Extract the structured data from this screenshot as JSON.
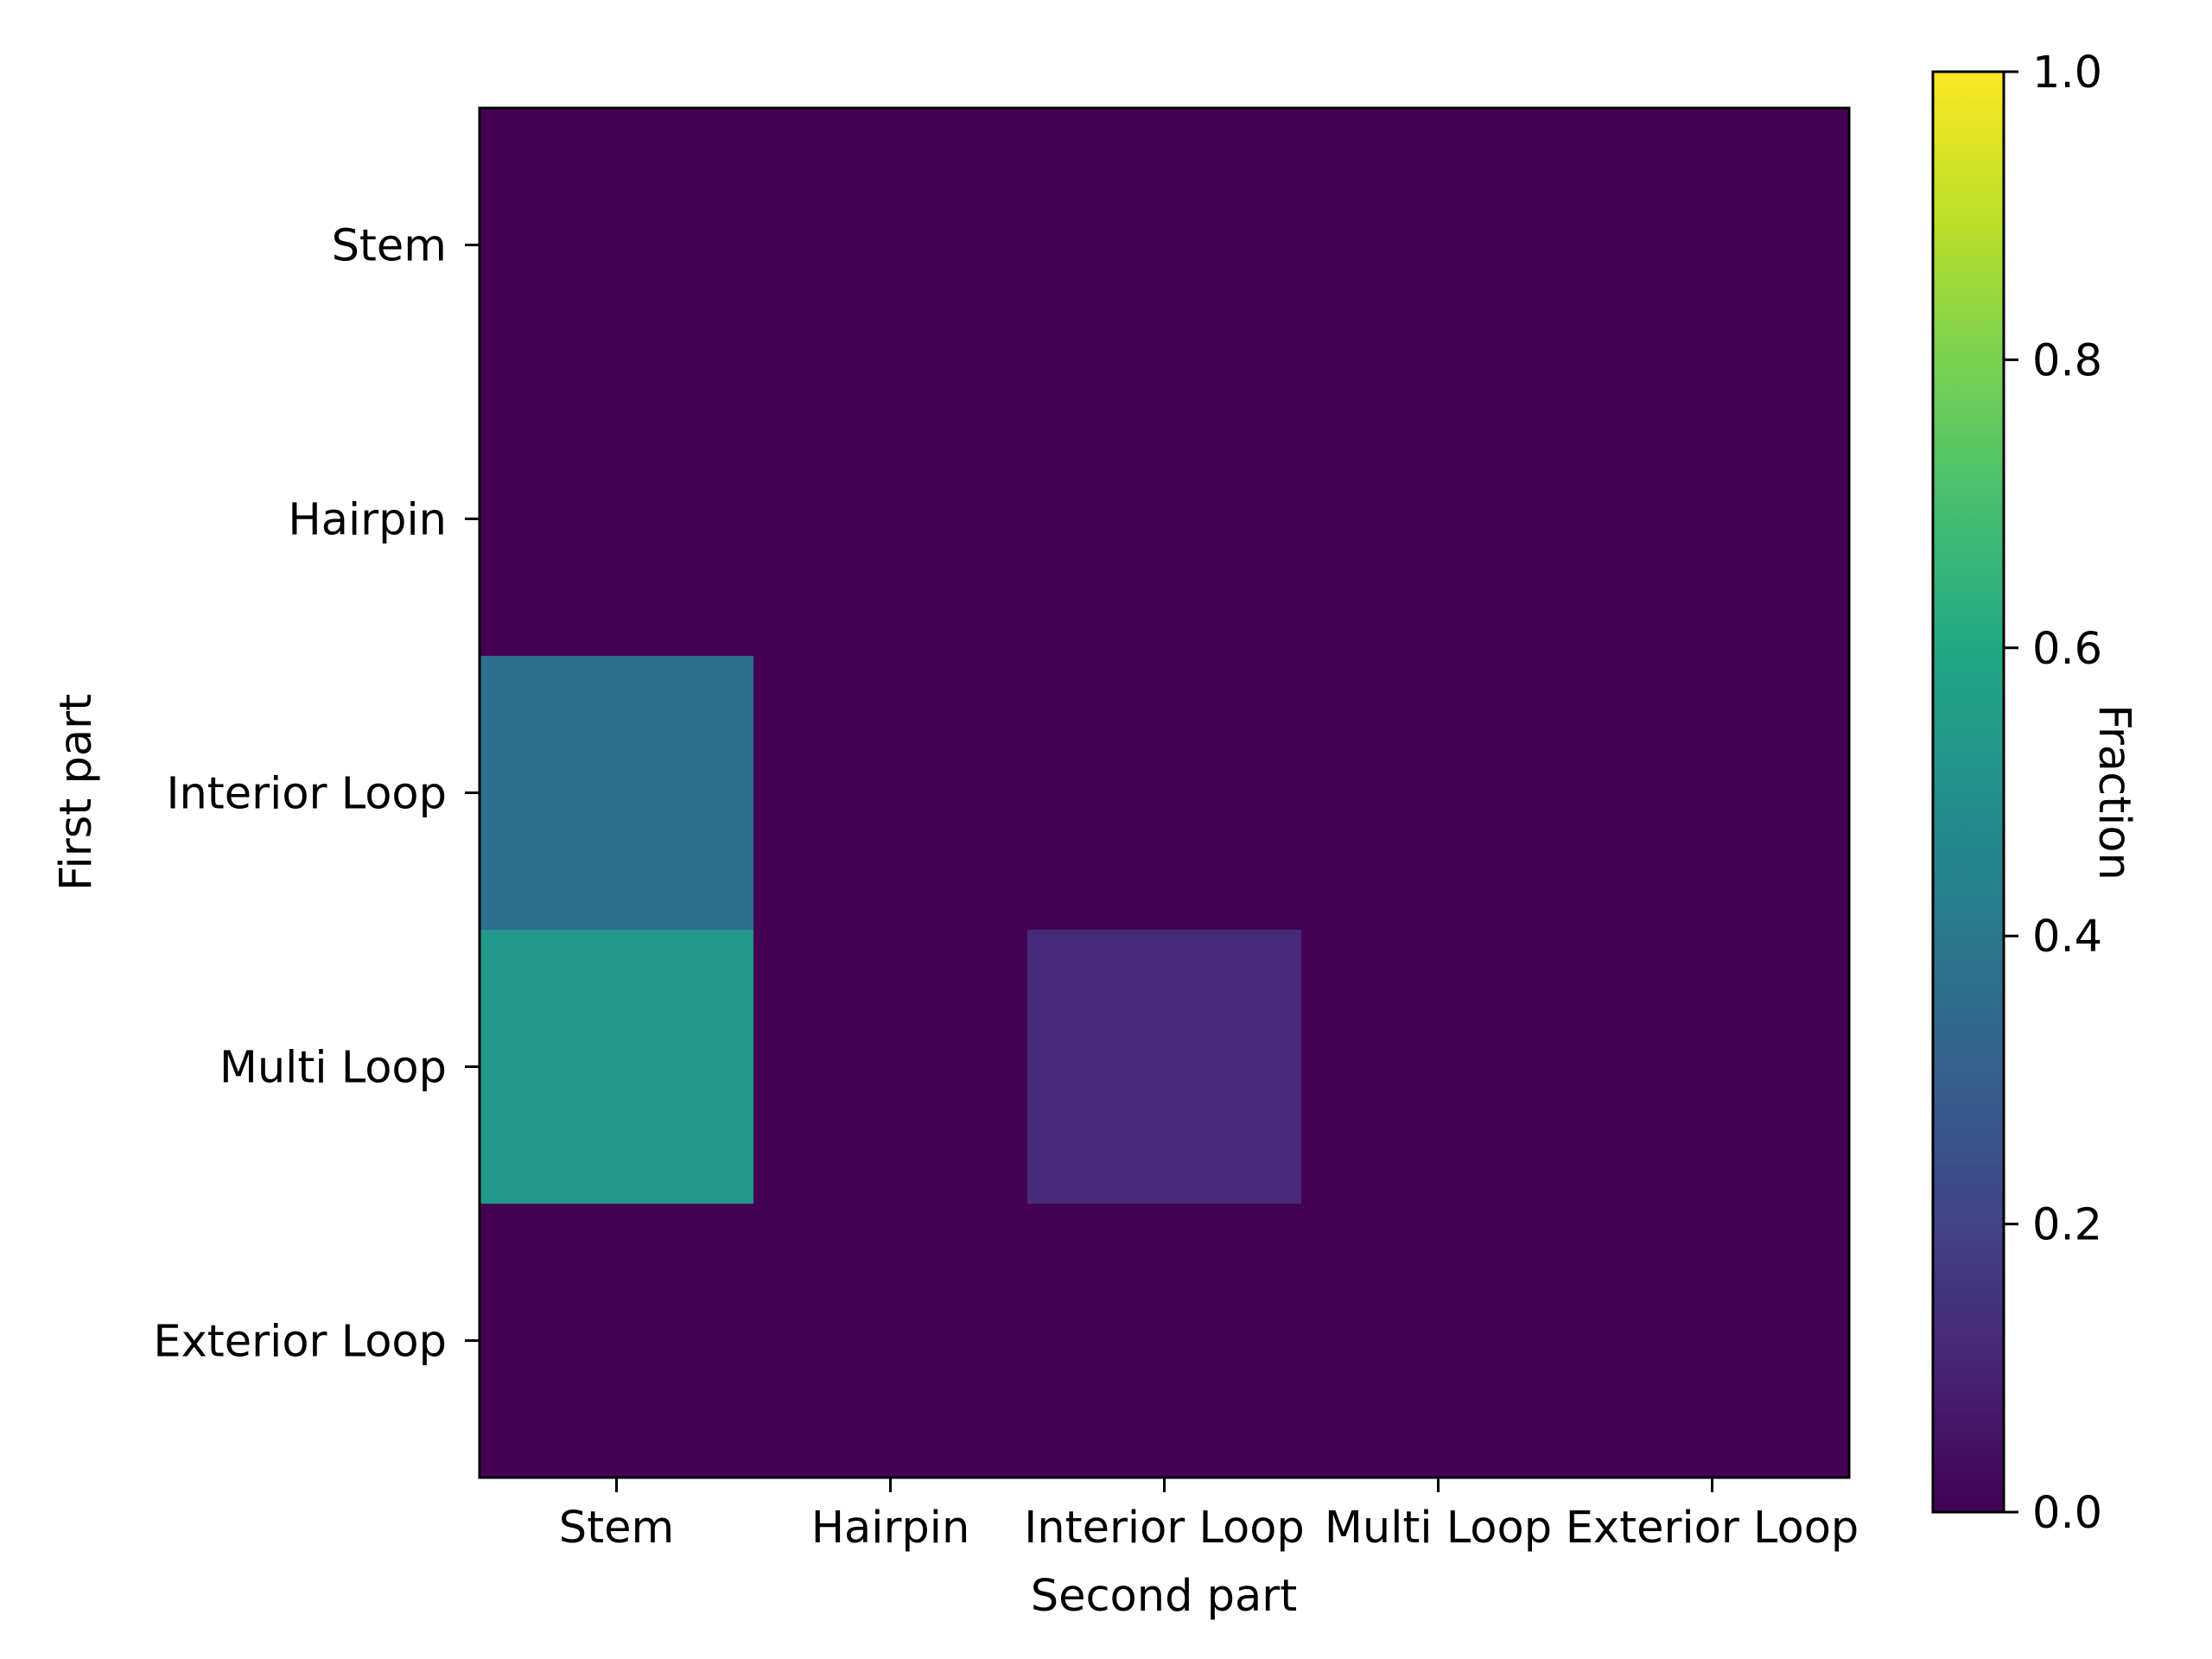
{
  "chart_data": {
    "type": "heatmap",
    "xlabel": "Second part",
    "ylabel": "First part",
    "x_categories": [
      "Stem",
      "Hairpin",
      "Interior Loop",
      "Multi Loop",
      "Exterior Loop"
    ],
    "y_categories": [
      "Stem",
      "Hairpin",
      "Interior Loop",
      "Multi Loop",
      "Exterior Loop"
    ],
    "values": [
      [
        0,
        0,
        0,
        0,
        0
      ],
      [
        0,
        0,
        0,
        0,
        0
      ],
      [
        0.36,
        0,
        0,
        0,
        0
      ],
      [
        0.53,
        0,
        0.12,
        0,
        0
      ],
      [
        0,
        0,
        0,
        0,
        0
      ]
    ],
    "colormap": "viridis",
    "colorbar": {
      "label": "Fraction",
      "range": [
        0.0,
        1.0
      ],
      "ticks": [
        "0.0",
        "0.2",
        "0.4",
        "0.6",
        "0.8",
        "1.0"
      ]
    }
  }
}
